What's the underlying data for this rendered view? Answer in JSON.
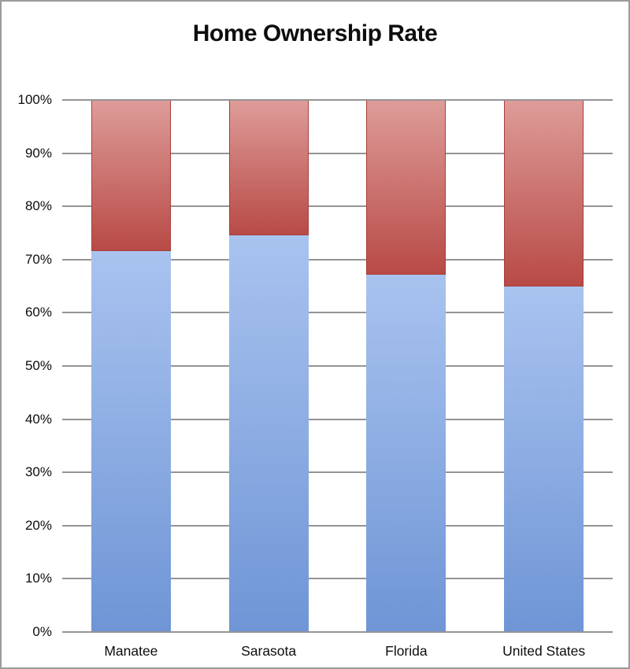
{
  "title": "Home Ownership Rate",
  "chart_data": {
    "type": "bar",
    "stacked": true,
    "title": "Home Ownership Rate",
    "xlabel": "",
    "ylabel": "",
    "categories": [
      "Manatee",
      "Sarasota",
      "Florida",
      "United States"
    ],
    "series": [
      {
        "name": "blue-bottom-segment",
        "values": [
          71.6,
          74.6,
          67.2,
          65.0
        ],
        "color_top": "#A9C3EF",
        "color_bottom": "#6F95D6",
        "border_color": ""
      },
      {
        "name": "red-top-segment",
        "values": [
          28.4,
          25.4,
          32.8,
          35.0
        ],
        "color_top": "#DE9C99",
        "color_bottom": "#B84A46",
        "border_color": "#A83E3B"
      }
    ],
    "ylim": [
      0,
      100
    ],
    "y_tick_labels": [
      "0%",
      "10%",
      "20%",
      "30%",
      "40%",
      "50%",
      "60%",
      "70%",
      "80%",
      "90%",
      "100%"
    ],
    "grid": "horizontal",
    "gridline_color": "#949494",
    "legend_position": "none"
  },
  "layout_colors": {
    "frame_border": "#9b9b9b",
    "background": "#ffffff",
    "text": "#0d0d0d"
  }
}
